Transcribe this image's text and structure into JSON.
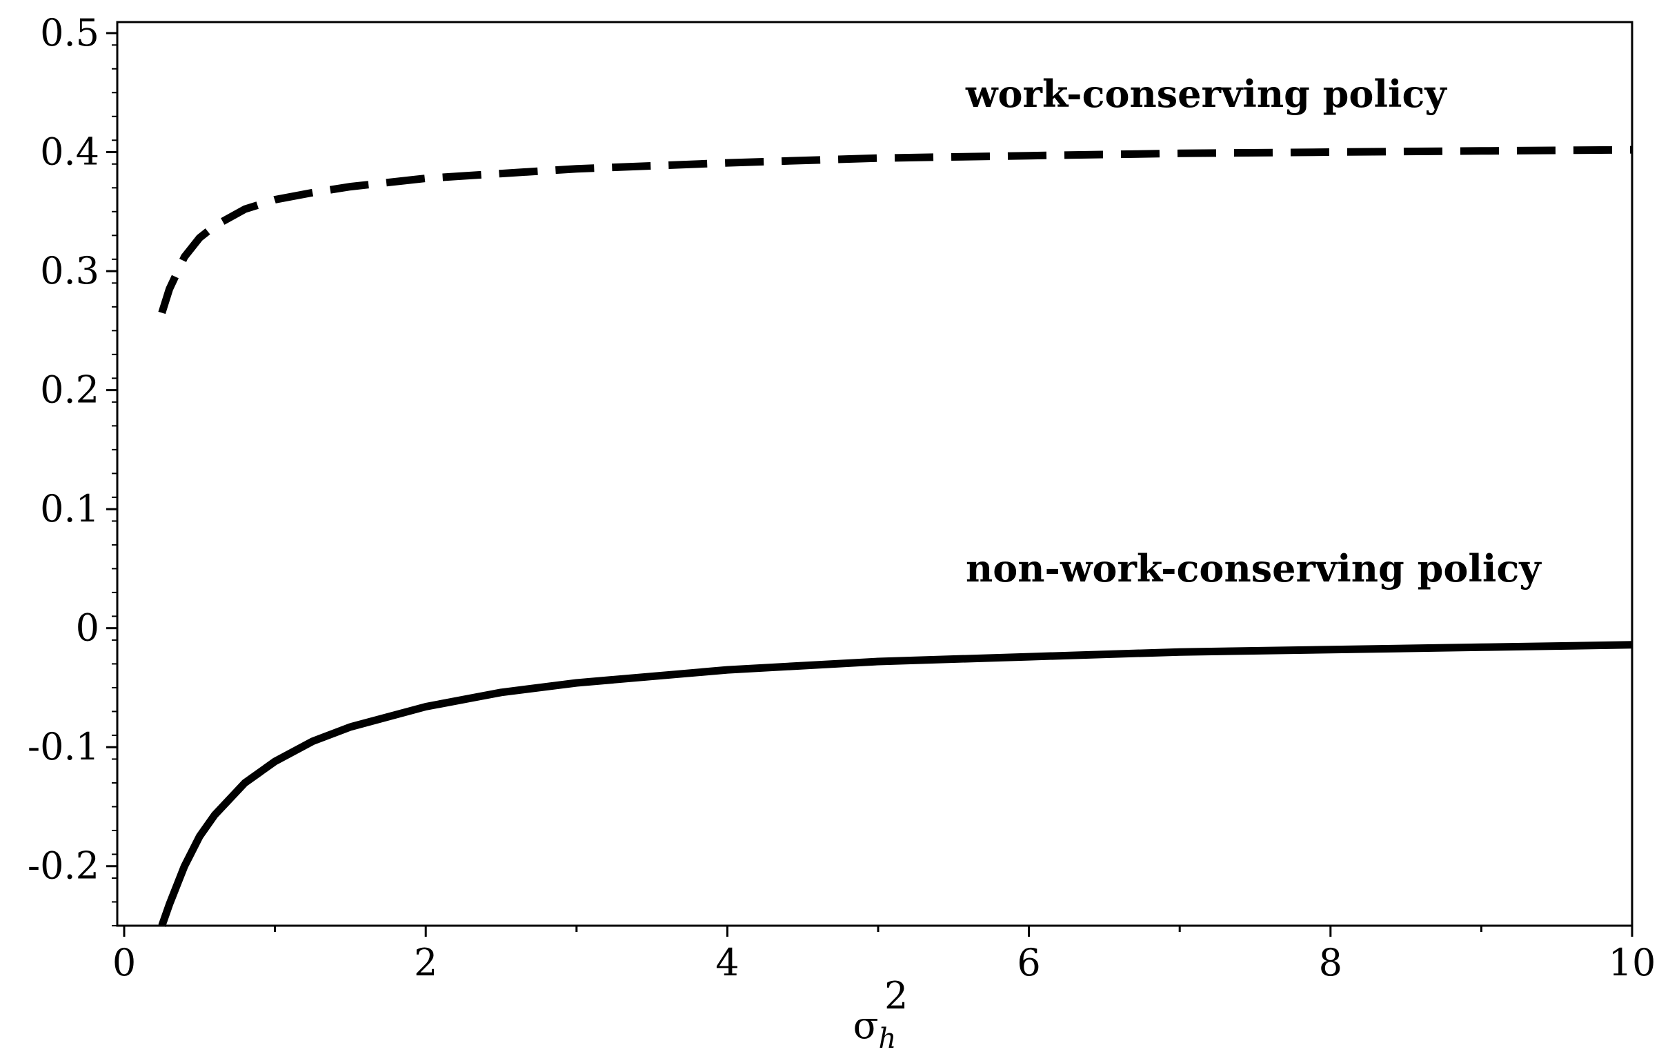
{
  "chart_data": {
    "type": "line",
    "title": "",
    "xlabel": "σ",
    "xlabel_superscript": "2",
    "xlabel_subscript": "h",
    "ylabel": "",
    "xlim": [
      0,
      10
    ],
    "ylim": [
      -0.25,
      0.5
    ],
    "x_ticks": [
      0,
      2,
      4,
      6,
      8,
      10
    ],
    "x_tick_labels": [
      "0",
      "2",
      "4",
      "6",
      "8",
      "10"
    ],
    "y_ticks": [
      -0.2,
      -0.1,
      0,
      0.1,
      0.2,
      0.3,
      0.4,
      0.5
    ],
    "y_tick_labels": [
      "-0.2",
      "-0.1",
      "0",
      "0.1",
      "0.2",
      "0.3",
      "0.4",
      "0.5"
    ],
    "grid": false,
    "legend": "none",
    "series": [
      {
        "label": "work-conserving policy",
        "style": "dashed",
        "color": "#000000",
        "x": [
          0.25,
          0.3,
          0.4,
          0.5,
          0.6,
          0.8,
          1.0,
          1.25,
          1.5,
          2.0,
          2.5,
          3.0,
          4.0,
          5.0,
          6.0,
          7.0,
          8.0,
          9.0,
          10.0
        ],
        "y": [
          0.265,
          0.285,
          0.312,
          0.328,
          0.338,
          0.352,
          0.36,
          0.366,
          0.371,
          0.378,
          0.382,
          0.386,
          0.391,
          0.395,
          0.397,
          0.399,
          0.4,
          0.401,
          0.402
        ]
      },
      {
        "label": "non-work-conserving policy",
        "style": "solid",
        "color": "#000000",
        "x": [
          0.25,
          0.3,
          0.4,
          0.5,
          0.6,
          0.8,
          1.0,
          1.25,
          1.5,
          2.0,
          2.5,
          3.0,
          4.0,
          5.0,
          6.0,
          7.0,
          8.0,
          9.0,
          10.0
        ],
        "y": [
          -0.25,
          -0.232,
          -0.2,
          -0.175,
          -0.157,
          -0.13,
          -0.112,
          -0.095,
          -0.083,
          -0.066,
          -0.054,
          -0.046,
          -0.035,
          -0.028,
          -0.024,
          -0.02,
          -0.018,
          -0.016,
          -0.014
        ]
      }
    ]
  }
}
